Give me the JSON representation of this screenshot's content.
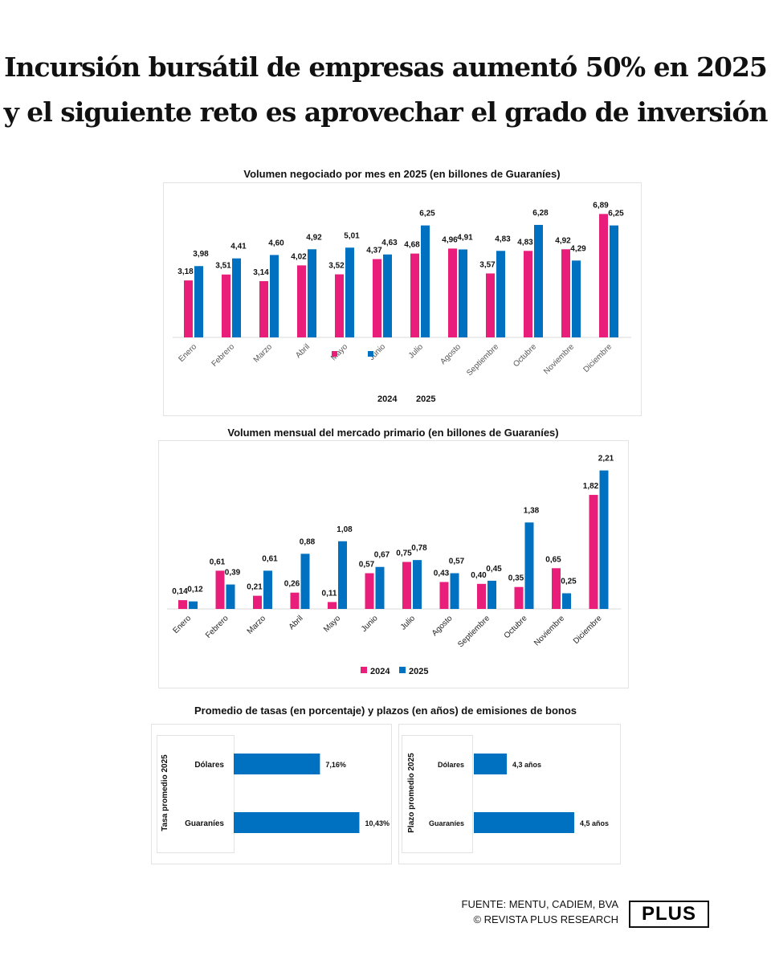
{
  "headline": [
    "Incursión bursátil de empresas aumentó 50% en 2025",
    "y el siguiente reto es aprovechar el grado de inversión"
  ],
  "colors": {
    "s2024": "#e91e7a",
    "s2025": "#0070c0"
  },
  "chart_data": [
    {
      "type": "bar",
      "title": "Volumen negociado por mes en 2025 (en billones de Guaraníes)",
      "categories": [
        "Enero",
        "Febrero",
        "Marzo",
        "Abril",
        "Mayo",
        "Junio",
        "Julio",
        "Agosto",
        "Septiembre",
        "Octubre",
        "Noviembre",
        "Diciembre"
      ],
      "series": [
        {
          "name": "2024",
          "values": [
            3.18,
            3.51,
            3.14,
            4.02,
            3.52,
            4.37,
            4.68,
            4.96,
            3.57,
            4.83,
            4.92,
            6.89
          ],
          "labels": [
            "3,18",
            "3,51",
            "3,14",
            "4,02",
            "3,52",
            "4,37",
            "4,68",
            "4,96",
            "3,57",
            "4,83",
            "4,92",
            "6,89"
          ]
        },
        {
          "name": "2025",
          "values": [
            3.98,
            4.41,
            4.6,
            4.92,
            5.01,
            4.63,
            6.25,
            4.91,
            4.83,
            6.28,
            4.29,
            6.25
          ],
          "labels": [
            "3,98",
            "4,41",
            "4,60",
            "4,92",
            "5,01",
            "4,63",
            "6,25",
            "4,91",
            "4,83",
            "6,28",
            "4,29",
            "6,25"
          ]
        }
      ],
      "legend": [
        "2024",
        "2025"
      ],
      "legend_placement": "bottom",
      "ylim": [
        0,
        7
      ]
    },
    {
      "type": "bar",
      "title": "Volumen mensual del mercado primario (en billones de Guaraníes)",
      "categories": [
        "Enero",
        "Febrero",
        "Marzo",
        "Abril",
        "Mayo",
        "Junio",
        "Julio",
        "Agosto",
        "Septiembre",
        "Octubre",
        "Noviembre",
        "Diciembre"
      ],
      "series": [
        {
          "name": "2024",
          "values": [
            0.14,
            0.61,
            0.21,
            0.26,
            0.11,
            0.57,
            0.75,
            0.43,
            0.4,
            0.35,
            0.65,
            1.82
          ],
          "labels": [
            "0,14",
            "0,61",
            "0,21",
            "0,26",
            "0,11",
            "0,57",
            "0,75",
            "0,43",
            "0,40",
            "0,35",
            "0,65",
            "1,82"
          ]
        },
        {
          "name": "2025",
          "values": [
            0.12,
            0.39,
            0.61,
            0.88,
            1.08,
            0.67,
            0.78,
            0.57,
            0.45,
            1.38,
            0.25,
            2.21
          ],
          "labels": [
            "0,12",
            "0,39",
            "0,61",
            "0,88",
            "1,08",
            "0,67",
            "0,78",
            "0,57",
            "0,45",
            "1,38",
            "0,25",
            "2,21"
          ]
        }
      ],
      "legend": [
        "2024",
        "2025"
      ],
      "legend_placement": "bottom",
      "ylim": [
        0,
        2.3
      ]
    },
    {
      "type": "bar",
      "orientation": "horizontal",
      "title": "Promedio de tasas (en porcentaje) y plazos (en años) de emisiones de bonos",
      "ylabel": "Tasa promedio 2025",
      "categories": [
        "Dólares",
        "Guaraníes"
      ],
      "values": [
        7.16,
        10.43
      ],
      "labels": [
        "7,16%",
        "10,43%"
      ]
    },
    {
      "type": "bar",
      "orientation": "horizontal",
      "ylabel": "Plazo promedio 2025",
      "categories": [
        "Dólares",
        "Guaraníes"
      ],
      "values": [
        4.3,
        4.5
      ],
      "labels": [
        "4,3 años",
        "4,5 años"
      ]
    }
  ],
  "footer": {
    "source": "FUENTE: MENTU, CADIEM, BVA",
    "credit": "© REVISTA PLUS RESEARCH",
    "logo": "PLUS"
  }
}
